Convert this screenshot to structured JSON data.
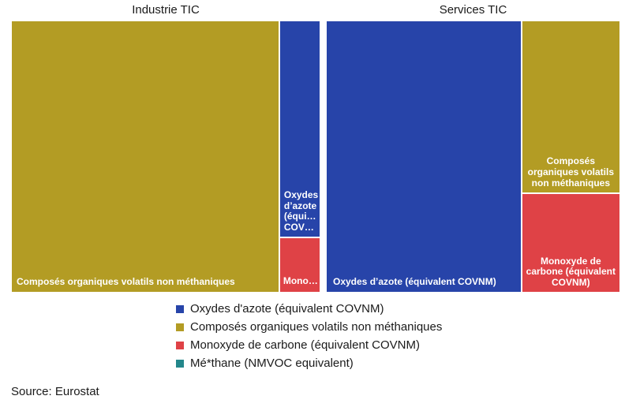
{
  "chart_data": {
    "type": "treemap",
    "panels": [
      {
        "title": "Industrie TIC",
        "items": [
          {
            "category": "Composés organiques volatils non méthaniques",
            "label": "Composés organiques volatils non méthaniques",
            "value": 86.7
          },
          {
            "category": "Oxydes d'azote (équivalent COVNM)",
            "label": "Oxydes d’azote (équi… COV…",
            "value": 10.6
          },
          {
            "category": "Monoxyde de carbone (équivalent COVNM)",
            "label": "Mono…",
            "value": 2.7
          }
        ]
      },
      {
        "title": "Services TIC",
        "items": [
          {
            "category": "Oxydes d'azote (équivalent COVNM)",
            "label": "Oxydes d’azote (équivalent COVNM)",
            "value": 66.4
          },
          {
            "category": "Composés organiques volatils non méthaniques",
            "label": "Composés organiques volatils non méthaniques",
            "value": 21.3
          },
          {
            "category": "Monoxyde de carbone (équivalent COVNM)",
            "label": "Monoxyde de carbone (équivalent COVNM)",
            "value": 12.3
          }
        ]
      }
    ],
    "legend": [
      {
        "name": "Oxydes d'azote (équivalent COVNM)",
        "color": "#2744a9"
      },
      {
        "name": "Composés organiques volatils non méthaniques",
        "color": "#b39c24"
      },
      {
        "name": "Monoxyde de carbone (équivalent COVNM)",
        "color": "#df4246"
      },
      {
        "name": "Mé*thane (NMVOC equivalent)",
        "color": "#24878b"
      }
    ]
  },
  "source": "Source: Eurostat"
}
